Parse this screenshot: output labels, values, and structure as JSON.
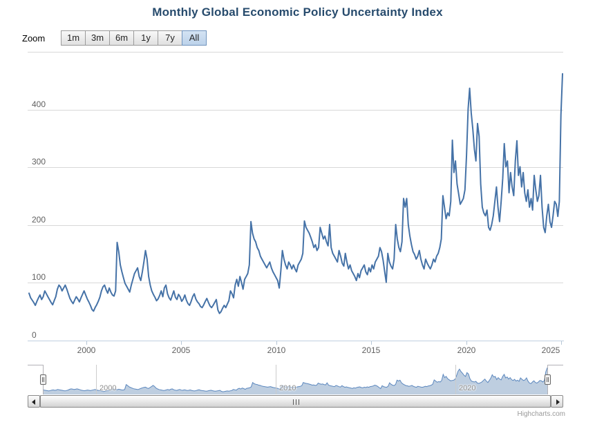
{
  "title": "Monthly Global Economic Policy Uncertainty Index",
  "range_selector": {
    "zoom_label": "Zoom",
    "buttons": [
      "1m",
      "3m",
      "6m",
      "1y",
      "7y",
      "All"
    ],
    "selected": "All"
  },
  "yaxis_labels": [
    "400",
    "300",
    "200",
    "100",
    "0"
  ],
  "xaxis_labels": [
    "2000",
    "2005",
    "2010",
    "2015",
    "2020",
    "2025"
  ],
  "navigator_labels": [
    "2000",
    "2010",
    "2020"
  ],
  "credits": "Highcharts.com",
  "colors": {
    "title": "#274b6d",
    "series_line": "#4572a7",
    "navigator_fill": "rgba(69,114,167,0.35)",
    "navigator_line": "#5b87be",
    "gridline": "#d8d8d8",
    "axis_line": "#c0d0e0",
    "selected_button_bg": "#bcd2ea"
  },
  "chart_data": {
    "type": "line",
    "title": "Monthly Global Economic Policy Uncertainty Index",
    "xlabel": "",
    "ylabel": "",
    "ylim": [
      0,
      500
    ],
    "y_ticks": [
      0,
      100,
      200,
      300,
      400
    ],
    "x_ticks": [
      "2000",
      "2005",
      "2010",
      "2015",
      "2020",
      "2025"
    ],
    "grid": true,
    "legend": false,
    "navigator": true,
    "series": [
      {
        "name": "Global Economic Policy Uncertainty Index",
        "start": "1997-01",
        "frequency": "monthly",
        "values": [
          82,
          74,
          70,
          66,
          61,
          68,
          74,
          79,
          71,
          76,
          86,
          81,
          76,
          71,
          66,
          62,
          69,
          76,
          89,
          96,
          93,
          86,
          91,
          96,
          89,
          81,
          73,
          68,
          64,
          70,
          76,
          72,
          67,
          74,
          80,
          86,
          79,
          72,
          67,
          61,
          54,
          51,
          57,
          62,
          68,
          75,
          86,
          93,
          96,
          88,
          82,
          91,
          84,
          79,
          77,
          86,
          170,
          154,
          131,
          119,
          109,
          99,
          94,
          89,
          84,
          96,
          106,
          116,
          121,
          126,
          111,
          104,
          119,
          136,
          156,
          141,
          111,
          96,
          86,
          80,
          75,
          69,
          72,
          78,
          86,
          76,
          91,
          96,
          81,
          74,
          70,
          78,
          86,
          75,
          71,
          80,
          76,
          68,
          72,
          79,
          70,
          64,
          61,
          68,
          76,
          81,
          72,
          67,
          64,
          59,
          57,
          62,
          68,
          73,
          66,
          60,
          57,
          61,
          66,
          71,
          53,
          47,
          50,
          56,
          61,
          57,
          63,
          69,
          86,
          81,
          74,
          96,
          106,
          94,
          111,
          101,
          89,
          106,
          111,
          116,
          131,
          206,
          186,
          176,
          171,
          161,
          156,
          146,
          141,
          136,
          131,
          126,
          131,
          136,
          126,
          119,
          114,
          109,
          104,
          91,
          121,
          156,
          141,
          131,
          124,
          136,
          131,
          124,
          131,
          124,
          119,
          131,
          136,
          141,
          151,
          207,
          196,
          191,
          186,
          179,
          171,
          161,
          166,
          156,
          161,
          196,
          186,
          176,
          181,
          171,
          164,
          201,
          161,
          151,
          146,
          141,
          136,
          156,
          146,
          134,
          129,
          151,
          136,
          124,
          131,
          121,
          116,
          111,
          104,
          116,
          109,
          121,
          126,
          131,
          119,
          114,
          126,
          119,
          131,
          124,
          136,
          141,
          146,
          161,
          154,
          139,
          119,
          101,
          151,
          136,
          129,
          124,
          141,
          201,
          176,
          161,
          154,
          171,
          246,
          231,
          246,
          201,
          181,
          166,
          154,
          149,
          141,
          146,
          156,
          141,
          131,
          124,
          141,
          134,
          129,
          124,
          131,
          141,
          136,
          146,
          151,
          161,
          176,
          251,
          231,
          211,
          221,
          216,
          241,
          347,
          291,
          311,
          271,
          254,
          236,
          241,
          246,
          261,
          321,
          401,
          437,
          394,
          366,
          331,
          311,
          376,
          354,
          271,
          231,
          221,
          216,
          226,
          196,
          191,
          201,
          216,
          241,
          266,
          231,
          206,
          241,
          281,
          341,
          301,
          311,
          256,
          291,
          266,
          251,
          311,
          346,
          286,
          301,
          266,
          291,
          256,
          241,
          261,
          231,
          246,
          226,
          286,
          261,
          241,
          251,
          286,
          231,
          196,
          187,
          216,
          236,
          206,
          196,
          216,
          241,
          236,
          215,
          241,
          391,
          462
        ]
      }
    ]
  }
}
